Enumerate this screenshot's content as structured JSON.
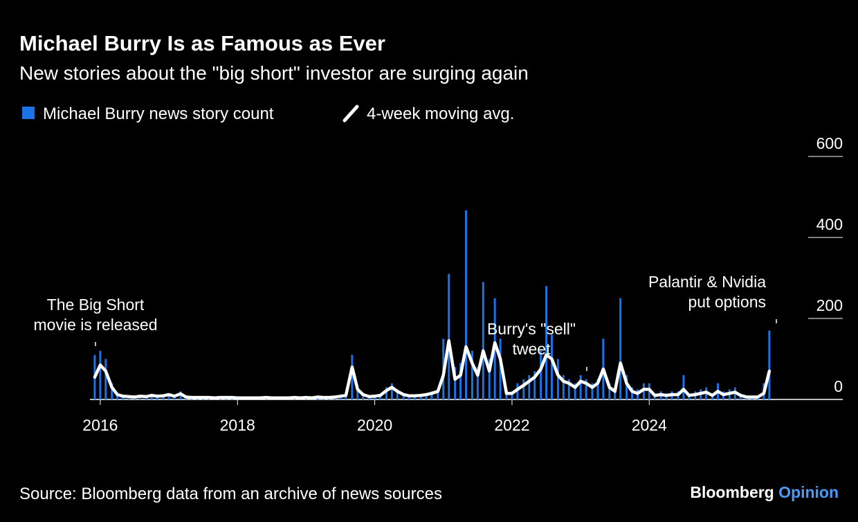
{
  "chart_data": {
    "type": "bar-line",
    "title": "Michael Burry Is as Famous as Ever",
    "subtitle": "New stories about the \"big short\" investor are surging again",
    "source": "Source: Bloomberg data from an archive of news sources",
    "brand": [
      "Bloomberg",
      "Opinion"
    ],
    "annotations": [
      "The Big Short\nmovie is released",
      "Burry's \"sell\"\ntweet",
      "Palantir & Nvidia\nput options"
    ],
    "x": [
      2015.92,
      2016.0,
      2016.08,
      2016.17,
      2016.25,
      2016.33,
      2016.42,
      2016.5,
      2016.58,
      2016.67,
      2016.75,
      2016.83,
      2016.92,
      2017.0,
      2017.08,
      2017.17,
      2017.25,
      2017.33,
      2017.42,
      2017.5,
      2017.58,
      2017.67,
      2017.75,
      2017.83,
      2017.92,
      2018.0,
      2018.08,
      2018.17,
      2018.25,
      2018.33,
      2018.42,
      2018.5,
      2018.58,
      2018.67,
      2018.75,
      2018.83,
      2018.92,
      2019.0,
      2019.08,
      2019.17,
      2019.25,
      2019.33,
      2019.42,
      2019.5,
      2019.58,
      2019.67,
      2019.75,
      2019.83,
      2019.92,
      2020.0,
      2020.08,
      2020.17,
      2020.25,
      2020.33,
      2020.42,
      2020.5,
      2020.58,
      2020.67,
      2020.75,
      2020.83,
      2020.92,
      2021.0,
      2021.08,
      2021.17,
      2021.25,
      2021.33,
      2021.42,
      2021.5,
      2021.58,
      2021.67,
      2021.75,
      2021.83,
      2021.92,
      2022.0,
      2022.08,
      2022.17,
      2022.25,
      2022.33,
      2022.42,
      2022.5,
      2022.58,
      2022.67,
      2022.75,
      2022.83,
      2022.92,
      2023.0,
      2023.08,
      2023.17,
      2023.25,
      2023.33,
      2023.42,
      2023.5,
      2023.58,
      2023.67,
      2023.75,
      2023.83,
      2023.92,
      2024.0,
      2024.08,
      2024.17,
      2024.25,
      2024.33,
      2024.42,
      2024.5,
      2024.58,
      2024.67,
      2024.75,
      2024.83,
      2024.92,
      2025.0,
      2025.08,
      2025.17,
      2025.25,
      2025.33,
      2025.42,
      2025.5,
      2025.58,
      2025.67,
      2025.75
    ],
    "series": [
      {
        "name": "Michael Burry news story count",
        "color": "#1a73e8",
        "values": [
          110,
          120,
          100,
          40,
          15,
          10,
          8,
          6,
          10,
          8,
          12,
          8,
          10,
          15,
          8,
          20,
          6,
          5,
          5,
          6,
          5,
          4,
          5,
          6,
          5,
          5,
          4,
          4,
          5,
          5,
          6,
          5,
          4,
          5,
          5,
          6,
          5,
          6,
          5,
          8,
          6,
          5,
          8,
          10,
          15,
          110,
          30,
          15,
          8,
          10,
          12,
          30,
          40,
          25,
          15,
          10,
          10,
          12,
          15,
          20,
          25,
          150,
          310,
          80,
          90,
          467,
          120,
          80,
          290,
          100,
          250,
          150,
          20,
          20,
          40,
          50,
          60,
          70,
          120,
          280,
          160,
          100,
          60,
          50,
          40,
          60,
          50,
          40,
          50,
          150,
          40,
          30,
          250,
          60,
          30,
          25,
          40,
          40,
          15,
          20,
          15,
          20,
          20,
          60,
          15,
          20,
          25,
          30,
          15,
          40,
          20,
          25,
          30,
          15,
          10,
          10,
          10,
          40,
          170
        ]
      },
      {
        "name": "4-week moving avg.",
        "color": "#ffffff",
        "values": [
          55,
          85,
          70,
          30,
          12,
          8,
          7,
          6,
          8,
          7,
          10,
          8,
          9,
          12,
          8,
          14,
          6,
          5,
          5,
          5,
          5,
          4,
          5,
          5,
          5,
          4,
          4,
          4,
          4,
          4,
          5,
          4,
          4,
          4,
          4,
          5,
          4,
          5,
          4,
          6,
          5,
          5,
          6,
          8,
          10,
          80,
          25,
          12,
          7,
          8,
          10,
          22,
          30,
          20,
          12,
          9,
          9,
          10,
          12,
          15,
          20,
          60,
          145,
          50,
          60,
          130,
          90,
          60,
          120,
          70,
          140,
          100,
          15,
          15,
          25,
          35,
          45,
          55,
          75,
          110,
          100,
          60,
          45,
          40,
          30,
          45,
          40,
          30,
          40,
          75,
          30,
          20,
          90,
          40,
          20,
          15,
          25,
          25,
          10,
          12,
          10,
          12,
          12,
          25,
          10,
          12,
          15,
          18,
          10,
          20,
          12,
          15,
          18,
          10,
          6,
          6,
          6,
          15,
          70
        ]
      }
    ],
    "xlim": [
      2015.85,
      2026.82
    ],
    "xticks": [
      2016,
      2018,
      2020,
      2022,
      2024
    ],
    "ylim": [
      0,
      600
    ],
    "yticks": [
      0,
      200,
      400,
      600
    ]
  }
}
